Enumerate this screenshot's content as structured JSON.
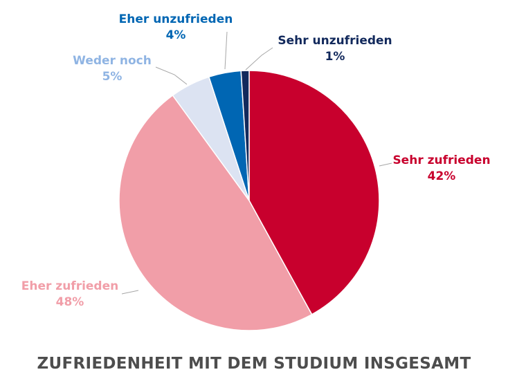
{
  "chart_data": {
    "type": "pie",
    "title": "ZUFRIEDENHEIT MIT DEM STUDIUM INSGESAMT",
    "start_angle": "12 o'clock, clockwise",
    "slices": [
      {
        "label": "Sehr zufrieden",
        "value": 42,
        "value_label": "42%",
        "color": "#C8002D"
      },
      {
        "label": "Eher zufrieden",
        "value": 48,
        "value_label": "48%",
        "color": "#F19EA8"
      },
      {
        "label": "Weder noch",
        "value": 5,
        "value_label": "5%",
        "color": "#DCE3F2",
        "label_color": "#8FB4E3"
      },
      {
        "label": "Eher unzufrieden",
        "value": 4,
        "value_label": "4%",
        "color": "#0066B3"
      },
      {
        "label": "Sehr unzufrieden",
        "value": 1,
        "value_label": "1%",
        "color": "#12295C"
      }
    ]
  }
}
